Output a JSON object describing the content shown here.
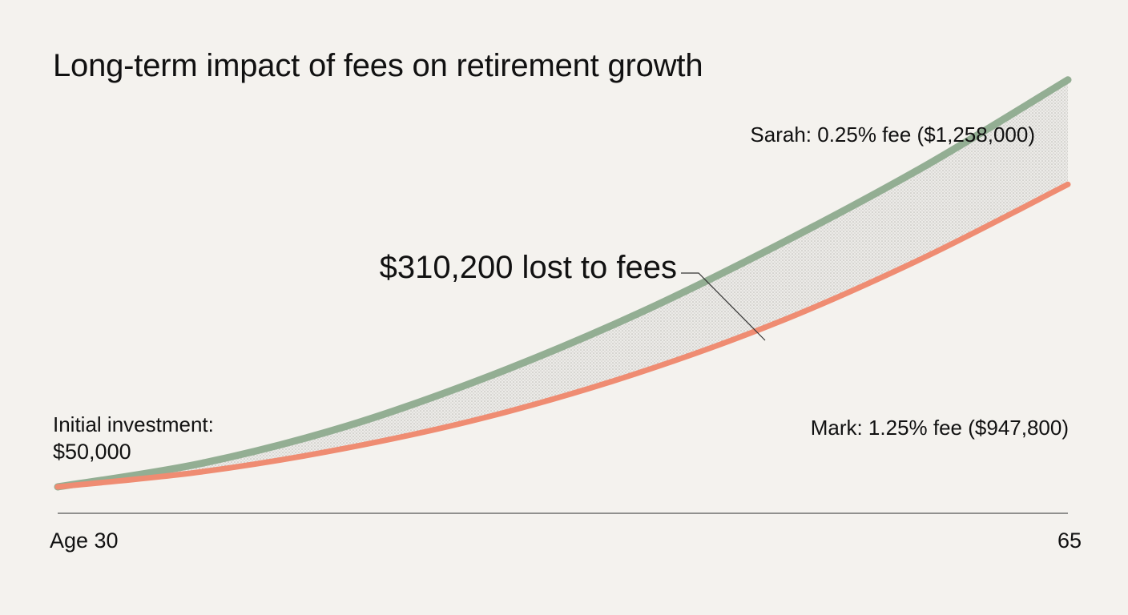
{
  "chart_data": {
    "type": "area",
    "title": "Long-term impact of fees on retirement growth",
    "xlabel": "",
    "ylabel": "",
    "x": [
      30,
      35,
      40,
      45,
      50,
      55,
      60,
      65
    ],
    "x_ticks": [
      "Age 30",
      "65"
    ],
    "ylim": [
      0,
      1400000
    ],
    "grid": false,
    "legend": "none",
    "series": [
      {
        "name": "Sarah: 0.25% fee ($1,258,000)",
        "color": "#93ae93",
        "values": [
          50000,
          120000,
          230000,
          380000,
          560000,
          770000,
          1000000,
          1258000
        ]
      },
      {
        "name": "Mark: 1.25% fee ($947,800)",
        "color": "#ef8c72",
        "values": [
          50000,
          95000,
          165000,
          260000,
          385000,
          540000,
          730000,
          947800
        ]
      }
    ],
    "annotations": {
      "initial_label": "Initial investment:",
      "initial_value": "$50,000",
      "gap": "$310,200 lost to fees"
    }
  }
}
